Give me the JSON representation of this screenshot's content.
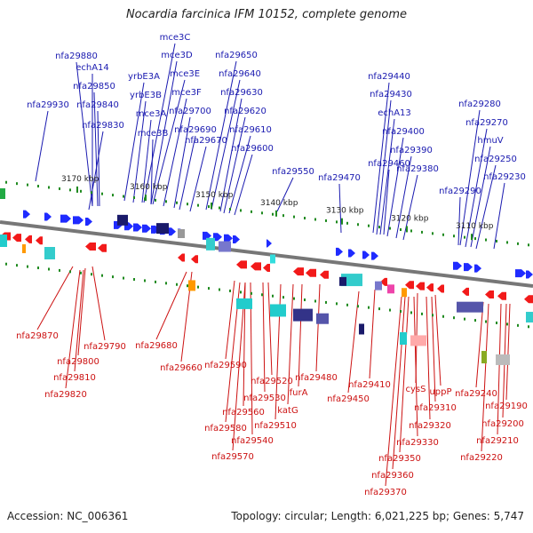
{
  "map": {
    "title": "Nocardia farcinica IFM 10152, complete genome",
    "accession": "Accession: NC_006361",
    "summary": "Topology: circular; Length: 6,021,225 bp; Genes: 5,747"
  },
  "colors": {
    "forward_gene": "#1f2bff",
    "reverse_gene": "#f21a1a",
    "forward_label": "#1a1ab0",
    "reverse_label": "#cc1111",
    "backbone": "#777777",
    "tick_dot": "#1f8a1f",
    "kbp_label": "#222222"
  },
  "scale_ticks": [
    "3170 kbp",
    "3160 kbp",
    "3150 kbp",
    "3140 kbp",
    "3130 kbp",
    "3120 kbp",
    "3110 kbp"
  ],
  "forward_labels": [
    "nfa29880",
    "echA14",
    "nfa29850",
    "nfa29930",
    "nfa29840",
    "nfa29830",
    "mce3C",
    "mce3D",
    "yrbE3A",
    "mce3E",
    "yrbE3B",
    "mce3F",
    "mce3A",
    "mce3B",
    "nfa29650",
    "nfa29640",
    "nfa29630",
    "nfa29620",
    "nfa29700",
    "nfa29690",
    "nfa29610",
    "nfa29670",
    "nfa29600",
    "nfa29550",
    "nfa29440",
    "nfa29430",
    "echA13",
    "nfa29400",
    "nfa29390",
    "nfa29460",
    "nfa29380",
    "nfa29470",
    "nfa29280",
    "nfa29270",
    "hmuV",
    "nfa29250",
    "nfa29230",
    "nfa29290"
  ],
  "reverse_labels": [
    "nfa29870",
    "nfa29790",
    "nfa29800",
    "nfa29810",
    "nfa29820",
    "nfa29680",
    "nfa29660",
    "nfa29590",
    "nfa29520",
    "nfa29530",
    "nfa29560",
    "furA",
    "nfa29480",
    "katG",
    "nfa29580",
    "nfa29510",
    "nfa29540",
    "nfa29570",
    "nfa29410",
    "nfa29450",
    "cysS",
    "uppP",
    "nfa29310",
    "nfa29320",
    "nfa29330",
    "nfa29350",
    "nfa29360",
    "nfa29370",
    "nfa29240",
    "nfa29190",
    "nfa29200",
    "nfa29210",
    "nfa29220"
  ]
}
